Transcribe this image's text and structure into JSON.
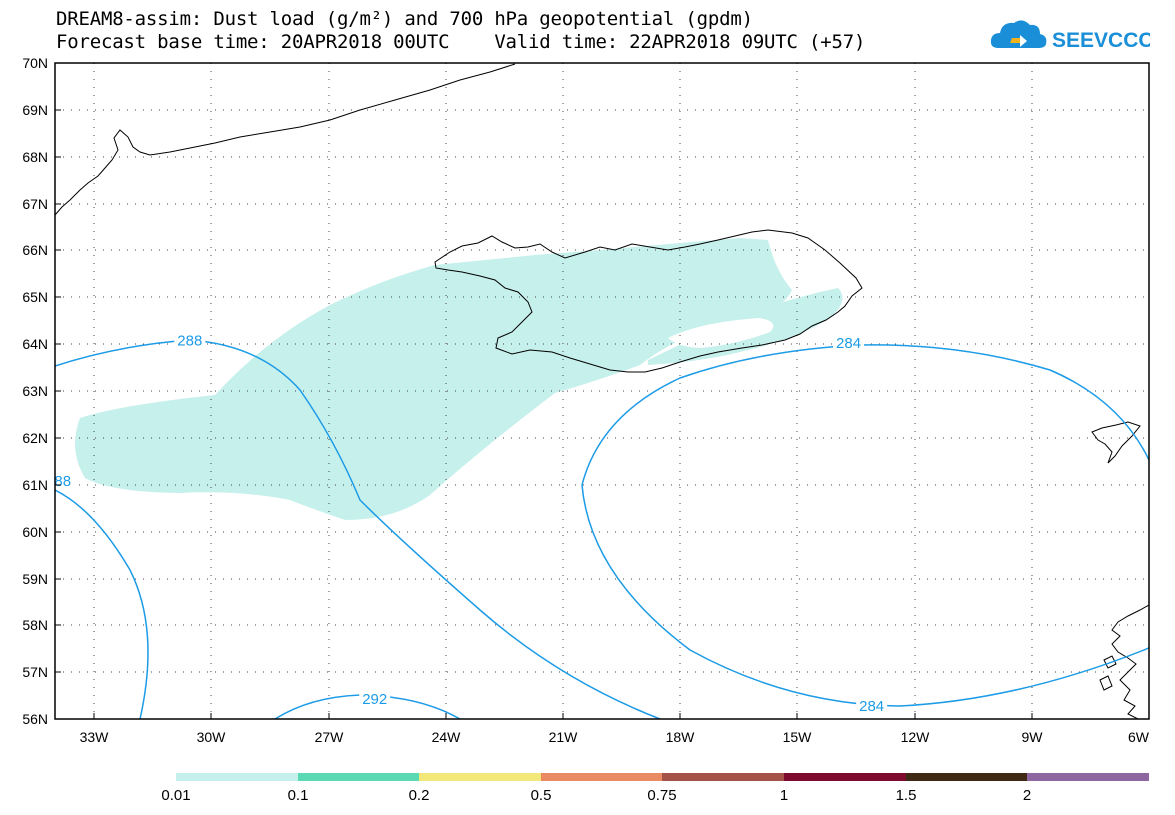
{
  "title": {
    "line1": "DREAM8-assim: Dust load (g/m²) and 700 hPa geopotential (gpdm)",
    "line2": "Forecast base time: 20APR2018 00UTC    Valid time: 22APR2018 09UTC (+57)"
  },
  "logo": {
    "text": "SEEVCCC",
    "icon": "cloud-icon",
    "color": "#1a8fd8"
  },
  "map": {
    "lat_labels": [
      "70N",
      "69N",
      "68N",
      "67N",
      "66N",
      "65N",
      "64N",
      "63N",
      "62N",
      "61N",
      "60N",
      "59N",
      "58N",
      "57N",
      "56N"
    ],
    "lon_labels": [
      "33W",
      "30W",
      "27W",
      "24W",
      "21W",
      "18W",
      "15W",
      "12W",
      "9W",
      "6W"
    ],
    "lat_range": [
      56,
      70
    ],
    "lon_range": [
      -34.4,
      -6
    ],
    "grid": "dotted",
    "dust_color": "#c6f0ec",
    "contour_color": "#1c9be6",
    "contour_labels": [
      {
        "text": "288",
        "lon": -30.9,
        "lat": 64.1
      },
      {
        "text": "88",
        "lon": -34.2,
        "lat": 61.1
      },
      {
        "text": "292",
        "lon": -26.1,
        "lat": 56.45
      },
      {
        "text": "284",
        "lon": -13.8,
        "lat": 64.05
      },
      {
        "text": "284",
        "lon": -13.2,
        "lat": 56.3
      }
    ]
  },
  "colorbar": {
    "labels": [
      "0.01",
      "0.1",
      "0.2",
      "0.5",
      "0.75",
      "1",
      "1.5",
      "2"
    ],
    "colors": [
      "#c6f0ec",
      "#5bd8b4",
      "#f2e87a",
      "#e98a63",
      "#a45148",
      "#7c0b2e",
      "#3e2a14",
      "#8e66a0"
    ]
  }
}
